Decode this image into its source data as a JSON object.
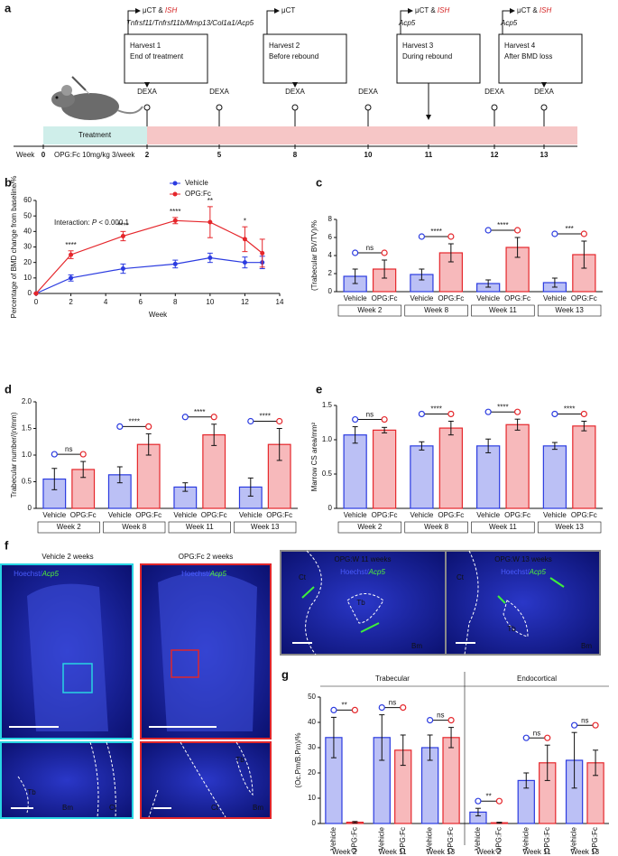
{
  "panel_a": {
    "label": "a",
    "week_label": "Week",
    "weeks": [
      0,
      2,
      5,
      8,
      10,
      11,
      12,
      13
    ],
    "treatment": "Treatment",
    "dose": "OPG:Fc 10mg/kg 3/week",
    "dexa": "DEXA",
    "dexa_weeks": [
      2,
      5,
      8,
      10,
      12,
      13
    ],
    "harvests": [
      {
        "week": 2,
        "imaging": "μCT & ",
        "ish": "ISH",
        "genes": "Tnfrsf11/Tnfrsf11b/Mmp13/Col1a1/Acp5",
        "title": "Harvest 1",
        "subtitle": "End of treatment"
      },
      {
        "week": 8,
        "imaging": "μCT",
        "title": "Harvest 2",
        "subtitle": "Before rebound"
      },
      {
        "week": 11,
        "imaging": "μCT & ",
        "ish": "ISH",
        "genes": "Acp5",
        "title": "Harvest 3",
        "subtitle": "During rebound"
      },
      {
        "week": 13,
        "imaging": "μCT & ",
        "ish": "ISH",
        "genes": "Acp5",
        "title": "Harvest 4",
        "subtitle": "After BMD loss"
      }
    ]
  },
  "chart_data": [
    {
      "panel": "b",
      "type": "line",
      "annotation": {
        "prefix": "Interaction: ",
        "italic": "P",
        "suffix": " < 0.000 1"
      },
      "x": [
        0,
        2,
        5,
        8,
        10,
        12,
        13
      ],
      "xlim": [
        0,
        14
      ],
      "xticks": [
        0,
        2,
        4,
        6,
        8,
        10,
        12,
        14
      ],
      "xlabel": "Week",
      "ylim": [
        0,
        60
      ],
      "yticks": [
        0,
        10,
        20,
        30,
        40,
        50,
        60
      ],
      "ylabel": "Percentage of BMD change from baseline/%",
      "legend": "top",
      "series": [
        {
          "name": "Vehicle",
          "color": "#2b3be0",
          "values": [
            0,
            10,
            16,
            19,
            23,
            20,
            20
          ],
          "errors": [
            0,
            2,
            3,
            2.5,
            3,
            3.5,
            4
          ]
        },
        {
          "name": "OPG:Fc",
          "color": "#e5262b",
          "values": [
            0,
            25,
            37,
            47,
            46,
            35,
            26
          ],
          "errors": [
            0,
            2.5,
            3,
            2,
            10,
            8,
            9
          ]
        }
      ],
      "significance": [
        null,
        "****",
        "****",
        "****",
        "**",
        "*",
        null
      ]
    },
    {
      "panel": "c",
      "type": "bar",
      "categories": [
        "Week 2",
        "Week 8",
        "Week 11",
        "Week 13"
      ],
      "ylim": [
        0,
        8
      ],
      "yticks": [
        0,
        2,
        4,
        6,
        8
      ],
      "ylabel": "(Trabecular BV/TV)/%",
      "series": [
        {
          "name": "Vehicle",
          "color": "#2b3be0",
          "values": [
            1.7,
            1.9,
            0.9,
            1.0
          ],
          "errors": [
            0.8,
            0.6,
            0.4,
            0.5
          ]
        },
        {
          "name": "OPG:Fc",
          "color": "#e5262b",
          "values": [
            2.5,
            4.3,
            4.9,
            4.1
          ],
          "errors": [
            1.0,
            1.0,
            1.1,
            1.5
          ]
        }
      ],
      "significance": [
        "ns",
        "****",
        "****",
        "***"
      ]
    },
    {
      "panel": "d",
      "type": "bar",
      "categories": [
        "Week 2",
        "Week 8",
        "Week 11",
        "Week 13"
      ],
      "ylim": [
        0,
        2
      ],
      "yticks": [
        0,
        0.5,
        {
          "value": 1,
          "label": "1.0"
        },
        1.5,
        {
          "value": 2,
          "label": "2.0"
        }
      ],
      "ylabel": "Trabecular number/(n/mm)",
      "series": [
        {
          "name": "Vehicle",
          "color": "#2b3be0",
          "values": [
            0.55,
            0.63,
            0.4,
            0.4
          ],
          "errors": [
            0.2,
            0.15,
            0.08,
            0.17
          ]
        },
        {
          "name": "OPG:Fc",
          "color": "#e5262b",
          "values": [
            0.73,
            1.2,
            1.38,
            1.2
          ],
          "errors": [
            0.15,
            0.2,
            0.2,
            0.3
          ]
        }
      ],
      "significance": [
        "ns",
        "****",
        "****",
        "****"
      ]
    },
    {
      "panel": "e",
      "type": "bar",
      "categories": [
        "Week 2",
        "Week 8",
        "Week 11",
        "Week 13"
      ],
      "ylim": [
        0,
        1.5
      ],
      "yticks": [
        0,
        0.5,
        {
          "value": 1,
          "label": "1.0"
        },
        1.5
      ],
      "ylabel": "Marrow CS area/mm²",
      "series": [
        {
          "name": "Vehicle",
          "color": "#2b3be0",
          "values": [
            1.07,
            0.91,
            0.91,
            0.91
          ],
          "errors": [
            0.12,
            0.06,
            0.1,
            0.05
          ]
        },
        {
          "name": "OPG:Fc",
          "color": "#e5262b",
          "values": [
            1.14,
            1.17,
            1.22,
            1.2
          ],
          "errors": [
            0.04,
            0.1,
            0.08,
            0.07
          ]
        }
      ],
      "significance": [
        "ns",
        "****",
        "****",
        "****"
      ]
    },
    {
      "panel": "g",
      "type": "bar",
      "sections": [
        "Trabecular",
        "Endocortical"
      ],
      "categories": [
        "Week 2",
        "Week 11",
        "Week 13",
        "Week 2",
        "Week 11",
        "Week 13"
      ],
      "ylim": [
        0,
        50
      ],
      "yticks": [
        0,
        10,
        20,
        30,
        40,
        50
      ],
      "ylabel": "(Oc.Pm/B.Pm)/%",
      "series": [
        {
          "name": "Vehicle",
          "color": "#2b3be0",
          "values": [
            34,
            34,
            30,
            4.5,
            17,
            25
          ],
          "errors": [
            8,
            9,
            5,
            1.5,
            3,
            11
          ]
        },
        {
          "name": "OPG:Fc",
          "color": "#e5262b",
          "values": [
            0.5,
            29,
            34,
            0.3,
            24,
            24
          ],
          "errors": [
            0.3,
            6,
            4,
            0.2,
            7,
            5
          ]
        }
      ],
      "significance": [
        "**",
        "ns",
        "ns",
        "**",
        "ns",
        "ns"
      ]
    }
  ],
  "panel_f": {
    "label": "f",
    "images": [
      {
        "title": "Vehicle 2 weeks",
        "stain": "Hoechst/",
        "gene": "Acp5",
        "tissues": [
          "Tb",
          "Bm",
          "Ct"
        ]
      },
      {
        "title": "OPG:Fc 2 weeks",
        "stain": "Hoechst/",
        "gene": "Acp5",
        "tissues": [
          "Tb",
          "Ct",
          "Bm"
        ]
      },
      {
        "title": "OPG:W 11 weeks",
        "stain": "Hoechst/",
        "gene": "Acp5",
        "tissues": [
          "Ct",
          "Tb",
          "Bm"
        ]
      },
      {
        "title": "OPG:W 13 weeks",
        "stain": "Hoechst/",
        "gene": "Acp5",
        "tissues": [
          "Ct",
          "Tb",
          "Bm"
        ]
      }
    ]
  }
}
